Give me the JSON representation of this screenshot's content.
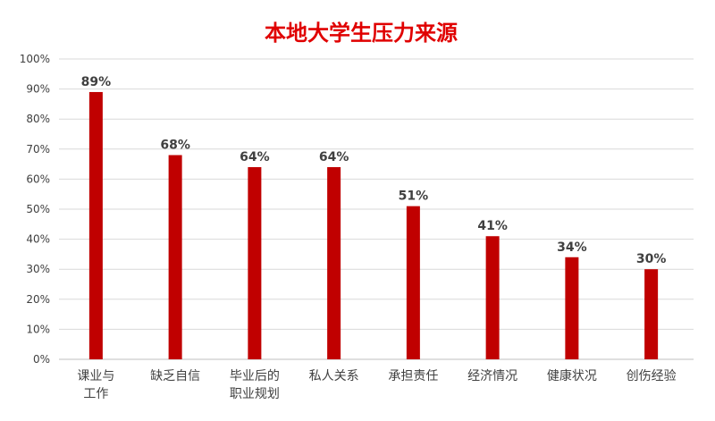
{
  "chart_data": {
    "type": "bar",
    "title": "本地大学生压力来源",
    "categories": [
      [
        "课业与",
        "工作"
      ],
      [
        "缺乏自信"
      ],
      [
        "毕业后的",
        "职业规划"
      ],
      [
        "私人关系"
      ],
      [
        "承担责任"
      ],
      [
        "经济情况"
      ],
      [
        "健康状况"
      ],
      [
        "创伤经验"
      ]
    ],
    "values": [
      89,
      68,
      64,
      64,
      51,
      41,
      34,
      30
    ],
    "data_labels": [
      "89%",
      "68%",
      "64%",
      "64%",
      "51%",
      "41%",
      "34%",
      "30%"
    ],
    "y_ticks": [
      0,
      10,
      20,
      30,
      40,
      50,
      60,
      70,
      80,
      90,
      100
    ],
    "y_tick_labels": [
      "0%",
      "10%",
      "20%",
      "30%",
      "40%",
      "50%",
      "60%",
      "70%",
      "80%",
      "90%",
      "100%"
    ],
    "ylim": [
      0,
      100
    ],
    "grid": true,
    "legend": "none",
    "bar_color": "#C00000",
    "title_color": "#E00000"
  }
}
